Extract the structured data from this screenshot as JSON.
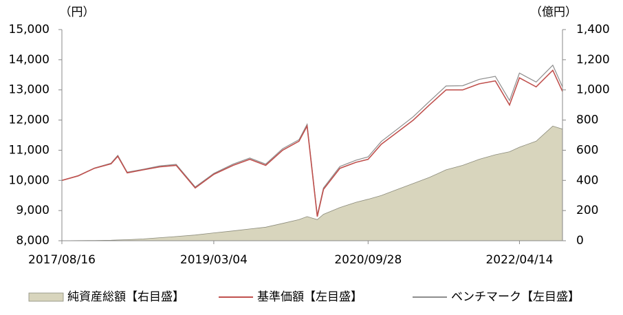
{
  "chart_data": {
    "type": "line",
    "y_label": "（円）",
    "y2_label": "（億円）",
    "x": [
      "2017/08/16",
      "2017/10/16",
      "2017/12/15",
      "2018/02/15",
      "2018/03/12",
      "2018/04/16",
      "2018/06/15",
      "2018/08/15",
      "2018/10/15",
      "2018/12/25",
      "2019/03/04",
      "2019/05/15",
      "2019/07/16",
      "2019/09/13",
      "2019/11/15",
      "2020/01/15",
      "2020/02/14",
      "2020/03/23",
      "2020/04/15",
      "2020/06/15",
      "2020/08/14",
      "2020/09/28",
      "2020/11/16",
      "2021/01/15",
      "2021/03/15",
      "2021/05/14",
      "2021/07/15",
      "2021/09/15",
      "2021/11/15",
      "2022/01/14",
      "2022/03/08",
      "2022/04/14",
      "2022/06/15",
      "2022/08/16",
      "2022/09/21"
    ],
    "xlim": [
      "2017/08/16",
      "2022/09/21"
    ],
    "xticks": [
      "2017/08/16",
      "2019/03/04",
      "2020/09/28",
      "2022/04/14"
    ],
    "ylim": [
      8000,
      15000
    ],
    "yticks": [
      {
        "value": 8000,
        "label": "8,000"
      },
      {
        "value": 9000,
        "label": "9,000"
      },
      {
        "value": 10000,
        "label": "10,000"
      },
      {
        "value": 11000,
        "label": "11,000"
      },
      {
        "value": 12000,
        "label": "12,000"
      },
      {
        "value": 13000,
        "label": "13,000"
      },
      {
        "value": 14000,
        "label": "14,000"
      },
      {
        "value": 15000,
        "label": "15,000"
      }
    ],
    "y2lim": [
      0,
      1400
    ],
    "y2ticks": [
      0,
      200,
      400,
      600,
      800,
      {
        "value": 1000,
        "label": "1,000"
      },
      {
        "value": 1200,
        "label": "1,200"
      },
      {
        "value": 1400,
        "label": "1,400"
      }
    ],
    "grid": false,
    "series": [
      {
        "name": "純資産総額【右目盛】",
        "color": "#d8d5bd",
        "kind": "area",
        "axis": "y2",
        "values": [
          0,
          1,
          2,
          3,
          5,
          7,
          12,
          20,
          28,
          38,
          52,
          65,
          78,
          90,
          115,
          140,
          160,
          140,
          175,
          220,
          255,
          275,
          300,
          340,
          380,
          420,
          470,
          500,
          540,
          570,
          590,
          620,
          660,
          760,
          740
        ]
      },
      {
        "name": "基準価額【左目盛】",
        "color": "#c0504d",
        "kind": "line",
        "values": [
          10000,
          10150,
          10400,
          10550,
          10800,
          10250,
          10350,
          10450,
          10500,
          9750,
          10200,
          10500,
          10700,
          10500,
          11000,
          11300,
          11800,
          8800,
          9700,
          10400,
          10600,
          10700,
          11200,
          11600,
          12000,
          12500,
          13000,
          13000,
          13200,
          13300,
          12500,
          13400,
          13100,
          13650,
          12950
        ]
      },
      {
        "name": "ベンチマーク【左目盛】",
        "color": "#8c8c8c",
        "kind": "line",
        "values": [
          10000,
          10160,
          10410,
          10570,
          10830,
          10270,
          10370,
          10480,
          10530,
          9780,
          10230,
          10540,
          10740,
          10540,
          11050,
          11350,
          11860,
          8850,
          9750,
          10460,
          10670,
          10780,
          11290,
          11700,
          12110,
          12620,
          13130,
          13140,
          13350,
          13450,
          12650,
          13560,
          13260,
          13820,
          13100
        ]
      }
    ]
  }
}
